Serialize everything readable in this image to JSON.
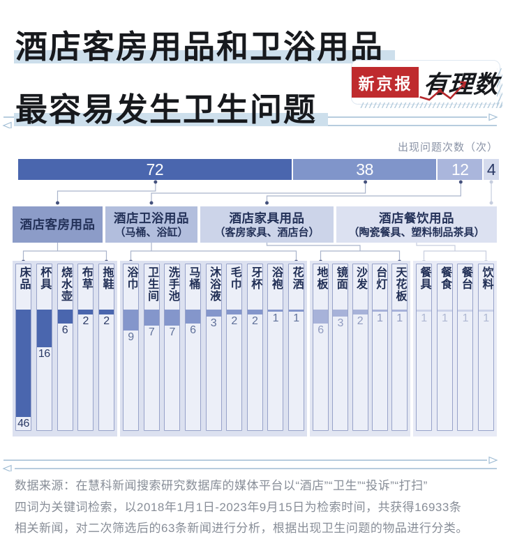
{
  "header": {
    "title_line1": "酒店客房用品和卫浴用品",
    "title_line2": "最容易发生卫生问题",
    "logo": {
      "brand": "新京报",
      "column_name": "有理数"
    }
  },
  "chart_data": {
    "type": "bar",
    "title": "酒店客房用品和卫浴用品最容易发生卫生问题",
    "unit_label": "出现问题次数（次）",
    "totals": {
      "categories": [
        "酒店客房用品",
        "酒店卫浴用品",
        "酒店家具用品",
        "酒店餐饮用品"
      ],
      "values": [
        72,
        38,
        12,
        4
      ]
    },
    "groups": [
      {
        "name": "酒店客房用品",
        "sub": "",
        "total": 72,
        "items": [
          {
            "label": "床品",
            "value": 46
          },
          {
            "label": "杯具",
            "value": 16
          },
          {
            "label": "烧水壶",
            "value": 6
          },
          {
            "label": "布草",
            "value": 2
          },
          {
            "label": "拖鞋",
            "value": 2
          }
        ]
      },
      {
        "name": "酒店卫浴用品",
        "sub": "（马桶、浴缸）",
        "total": 38,
        "items": [
          {
            "label": "浴巾",
            "value": 9
          },
          {
            "label": "卫生间",
            "value": 7
          },
          {
            "label": "洗手池",
            "value": 7
          },
          {
            "label": "马桶",
            "value": 6
          },
          {
            "label": "沐浴液",
            "value": 3
          },
          {
            "label": "毛巾",
            "value": 2
          },
          {
            "label": "牙杯",
            "value": 2
          },
          {
            "label": "浴袍",
            "value": 1
          },
          {
            "label": "花洒",
            "value": 1
          }
        ]
      },
      {
        "name": "酒店家具用品",
        "sub": "（客房家具、酒店台）",
        "total": 12,
        "items": [
          {
            "label": "地板",
            "value": 6
          },
          {
            "label": "镜面",
            "value": 3
          },
          {
            "label": "沙发",
            "value": 2
          },
          {
            "label": "台灯",
            "value": 1
          },
          {
            "label": "天花板",
            "value": 1
          }
        ]
      },
      {
        "name": "酒店餐饮用品",
        "sub": "（陶瓷餐具、塑料制品茶具）",
        "total": 4,
        "items": [
          {
            "label": "餐具",
            "value": 1
          },
          {
            "label": "餐食",
            "value": 1
          },
          {
            "label": "餐台",
            "value": 1
          },
          {
            "label": "饮料",
            "value": 1
          }
        ]
      }
    ],
    "layout": {
      "legend": "none",
      "grid": false
    },
    "style": {
      "segment_colors": [
        "#4a66ae",
        "#8095ca",
        "#aab6dc",
        "#d5dbed"
      ],
      "segment_text_colors": [
        "#ffffff",
        "#ffffff",
        "#ffffff",
        "#2b3a66"
      ],
      "box_colors": [
        "#8c9cc8",
        "#b2bedd",
        "#ccd4e9",
        "#dce1f1"
      ],
      "fill_colors": [
        "#4a66ae",
        "#8496cb",
        "#a7b2d9",
        "#ccd3e9"
      ],
      "num_colors": [
        "#2b3a66",
        "#5f7099",
        "#8f9abf",
        "#aeb7d2"
      ],
      "panel_colors": [
        "#dce1f0",
        "#dce1f0",
        "#e2e6f2",
        "#e8ebf6"
      ],
      "title_highlight": "#cddfec",
      "brand_red": "#bf2b2e",
      "connector_line": "#a9b3cb",
      "connector_dot": "#44517c",
      "connector_light": "#c6cdde"
    }
  },
  "footer": {
    "source_line1": "数据来源：在慧科新闻搜索研究数据库的媒体平台以“酒店”“卫生”“投诉”“打扫”",
    "source_line2": "四词为关键词检索，以2018年1月1日-2023年9月15日为检索时间，共获得16933条",
    "source_line3": "相关新闻，对二次筛选后的63条新闻进行分析，根据出现卫生问题的物品进行分类。"
  }
}
